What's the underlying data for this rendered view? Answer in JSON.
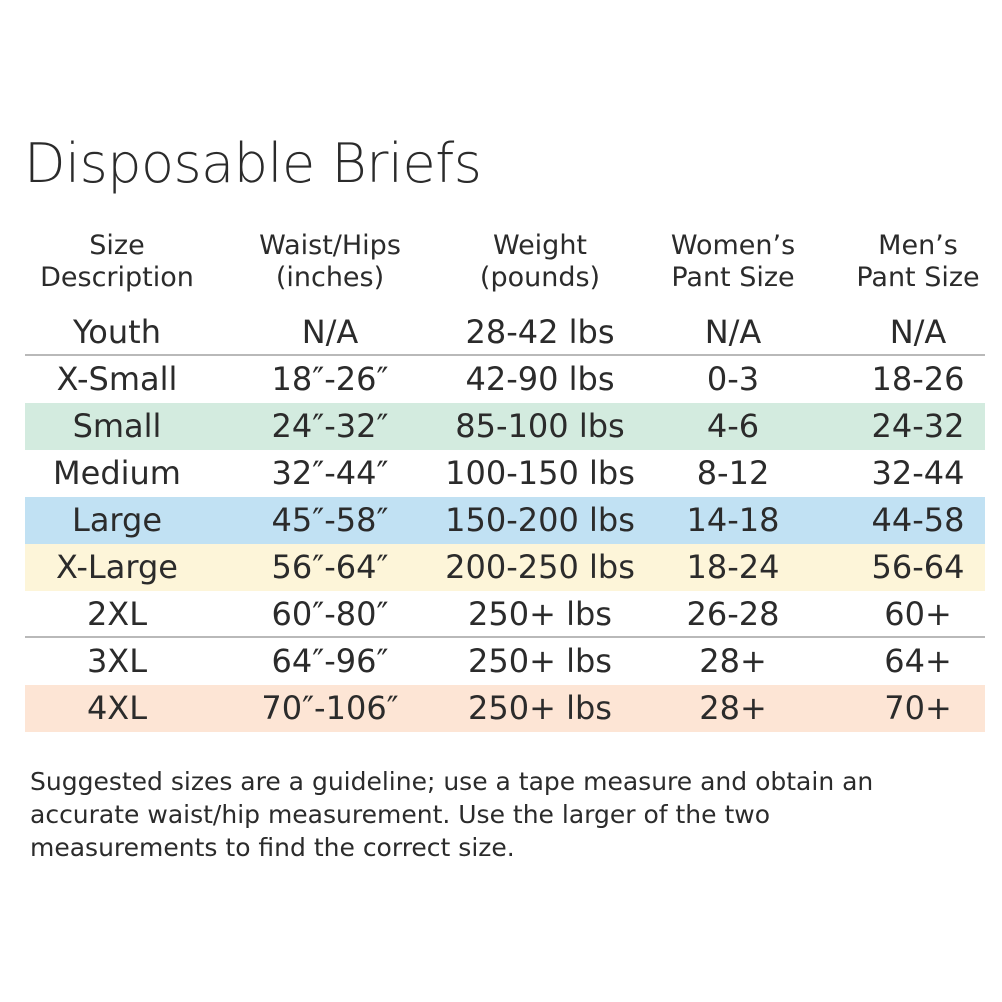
{
  "title": "Disposable Briefs",
  "table": {
    "header": [
      [
        "Size",
        "Description"
      ],
      [
        "Waist/Hips",
        "(inches)"
      ],
      [
        "Weight",
        "(pounds)"
      ],
      [
        "Women’s",
        "Pant Size"
      ],
      [
        "Men’s",
        "Pant Size"
      ]
    ],
    "rows": [
      {
        "cells": [
          "Youth",
          "N/A",
          "28-42 lbs",
          "N/A",
          "N/A"
        ],
        "color": "#ffffff"
      },
      {
        "cells": [
          "X-Small",
          "18″-26″",
          "42-90 lbs",
          "0-3",
          "18-26"
        ],
        "color": "#ffffff"
      },
      {
        "cells": [
          "Small",
          "24″-32″",
          "85-100 lbs",
          "4-6",
          "24-32"
        ],
        "color": "#d3ebdf"
      },
      {
        "cells": [
          "Medium",
          "32″-44″",
          "100-150 lbs",
          "8-12",
          "32-44"
        ],
        "color": "#ffffff"
      },
      {
        "cells": [
          "Large",
          "45″-58″",
          "150-200 lbs",
          "14-18",
          "44-58"
        ],
        "color": "#c1e1f3"
      },
      {
        "cells": [
          "X-Large",
          "56″-64″",
          "200-250 lbs",
          "18-24",
          "56-64"
        ],
        "color": "#fdf5d9"
      },
      {
        "cells": [
          "2XL",
          "60″-80″",
          "250+ lbs",
          "26-28",
          "60+"
        ],
        "color": "#ffffff"
      },
      {
        "cells": [
          "3XL",
          "64″-96″",
          "250+ lbs",
          "28+",
          "64+"
        ],
        "color": "#ffffff"
      },
      {
        "cells": [
          "4XL",
          "70″-106″",
          "250+ lbs",
          "28+",
          "70+"
        ],
        "color": "#fde5d5"
      }
    ]
  },
  "note": "Suggested sizes are a guideline; use a tape measure and obtain an accurate waist/hip measurement. Use the larger of the two measurements to find the correct size."
}
